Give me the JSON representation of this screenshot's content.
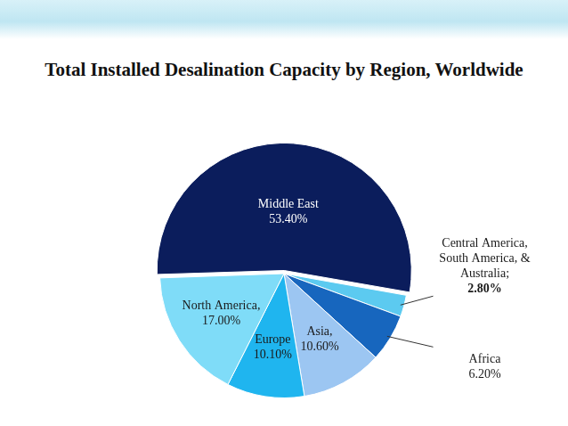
{
  "chart_data": {
    "type": "pie",
    "title": "Total Installed Desalination Capacity by Region, Worldwide",
    "categories": [
      "Middle East",
      "Central America, South America, & Australia;",
      "Africa",
      "Asia,",
      "Europe",
      "North America,"
    ],
    "values": [
      53.4,
      2.8,
      6.2,
      10.6,
      10.1,
      17.0
    ],
    "value_labels": [
      "53.40%",
      "2.80%",
      "6.20%",
      "10.60%",
      "10.10%",
      "17.00%"
    ],
    "colors": [
      "#0b1d5c",
      "#5ccaf0",
      "#1766be",
      "#9cc6f2",
      "#1fb5ef",
      "#7fdcf8"
    ],
    "data_labels": true
  }
}
